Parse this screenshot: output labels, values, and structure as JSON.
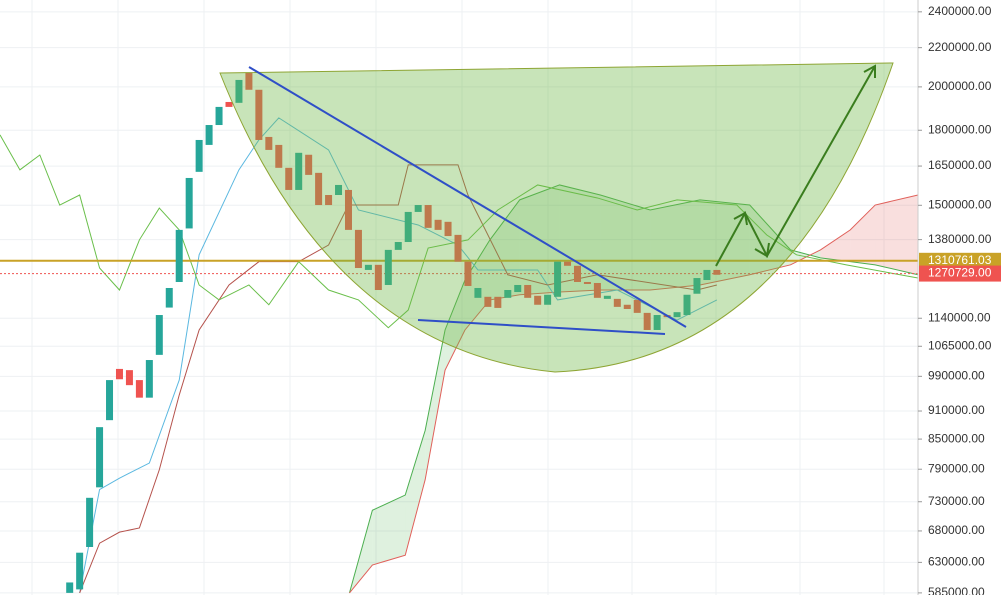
{
  "chart_data": {
    "type": "candlestick",
    "log_scale": true,
    "grid": true,
    "ylim": [
      582000,
      2470000
    ],
    "xlim": [
      -7,
      85.2
    ],
    "yticks": [
      {
        "value": 2400000,
        "label": "2400000.00"
      },
      {
        "value": 2200000,
        "label": "2200000.00"
      },
      {
        "value": 2000000,
        "label": "2000000.00"
      },
      {
        "value": 1800000,
        "label": "1800000.00"
      },
      {
        "value": 1650000,
        "label": "1650000.00"
      },
      {
        "value": 1500000,
        "label": "1500000.00"
      },
      {
        "value": 1380000,
        "label": "1380000.00"
      },
      {
        "value": 1140000,
        "label": "1140000.00"
      },
      {
        "value": 1065000,
        "label": "1065000.00"
      },
      {
        "value": 990000,
        "label": "990000.00"
      },
      {
        "value": 910000,
        "label": "910000.00"
      },
      {
        "value": 850000,
        "label": "850000.00"
      },
      {
        "value": 790000,
        "label": "790000.00"
      },
      {
        "value": 730000,
        "label": "730000.00"
      },
      {
        "value": 680000,
        "label": "680000.00"
      },
      {
        "value": 630000,
        "label": "630000.00"
      },
      {
        "value": 585000,
        "label": "585000.00"
      }
    ],
    "up_color": "#26a69a",
    "down_color": "#ef5350",
    "candles": {
      "open": [
        585000,
        590000,
        654000,
        756000,
        890000,
        1008000,
        1005000,
        981000,
        940000,
        1043000,
        1170000,
        1245000,
        1418000,
        1627000,
        1737000,
        1823000,
        1928000,
        1924000,
        2071000,
        1986000,
        1771000,
        1737000,
        1643000,
        1557000,
        1696000,
        1623000,
        1538000,
        1538000,
        1557000,
        1413000,
        1282000,
        1298000,
        1236000,
        1346000,
        1372000,
        1476000,
        1501000,
        1448000,
        1441000,
        1396000,
        1308000,
        1198000,
        1201000,
        1201000,
        1198000,
        1215000,
        1236000,
        1204000,
        1178000,
        1201000,
        1308000,
        1295000,
        1245000,
        1242000,
        1195000,
        1195000,
        1178000,
        1192000,
        1155000,
        1108000,
        1149000,
        1143000,
        1149000,
        1210000,
        1251000,
        1282000
      ],
      "close": [
        600000,
        645000,
        737000,
        875000,
        981000,
        983000,
        969000,
        940000,
        1030000,
        1149000,
        1227000,
        1413000,
        1603000,
        1758000,
        1823000,
        1905000,
        1905000,
        2034000,
        1986000,
        1758000,
        1716000,
        1643000,
        1557000,
        1704000,
        1615000,
        1501000,
        1501000,
        1576000,
        1413000,
        1288000,
        1298000,
        1221000,
        1346000,
        1372000,
        1476000,
        1501000,
        1420000,
        1413000,
        1392000,
        1308000,
        1233000,
        1227000,
        1172000,
        1169000,
        1221000,
        1236000,
        1198000,
        1178000,
        1207000,
        1308000,
        1295000,
        1245000,
        1239000,
        1198000,
        1204000,
        1172000,
        1166000,
        1155000,
        1108000,
        1149000,
        1143000,
        1157000,
        1207000,
        1257000,
        1282000,
        1267000
      ]
    },
    "lines": [
      {
        "color": "#5bb8e0",
        "x": [
          1,
          3,
          5,
          8,
          11,
          13,
          17,
          19,
          21,
          26,
          29,
          35,
          39,
          41,
          47,
          49,
          55,
          61,
          65
        ],
        "values": [
          585000,
          752000,
          773000,
          802000,
          981000,
          1330000,
          1635000,
          1758000,
          1855000,
          1716000,
          1483000,
          1430000,
          1362000,
          1282000,
          1282000,
          1192000,
          1221000,
          1135000,
          1192000
        ]
      },
      {
        "color": "#b5524c",
        "x": [
          1,
          3,
          5,
          7,
          9,
          11,
          13,
          16,
          19,
          23,
          26,
          28,
          33,
          34,
          39,
          40,
          44,
          48,
          53,
          63,
          65
        ],
        "values": [
          585000,
          660000,
          678000,
          685000,
          789000,
          946000,
          1108000,
          1236000,
          1308000,
          1308000,
          1362000,
          1501000,
          1501000,
          1655000,
          1655000,
          1538000,
          1267000,
          1236000,
          1267000,
          1221000,
          1236000
        ]
      },
      {
        "color": "#6abf4b",
        "x": [
          -7,
          -5,
          -3,
          -1,
          1,
          3,
          5,
          7,
          9,
          11,
          13,
          15,
          18,
          20,
          23,
          26,
          29,
          32,
          34,
          36,
          40,
          43,
          47,
          53,
          57,
          61,
          67,
          70,
          73,
          78,
          85.2
        ],
        "values": [
          1780000,
          1635000,
          1695000,
          1501000,
          1538000,
          1288000,
          1221000,
          1379000,
          1490000,
          1413000,
          1236000,
          1192000,
          1236000,
          1178000,
          1308000,
          1221000,
          1192000,
          1114000,
          1163000,
          1352000,
          1379000,
          1483000,
          1576000,
          1527000,
          1483000,
          1520000,
          1501000,
          1396000,
          1330000,
          1298000,
          1257000
        ]
      }
    ],
    "cloud": {
      "x": [
        28.1,
        30.4,
        33.7,
        35.7,
        37.7,
        39.7,
        42.2,
        45.2,
        49.2,
        53.3,
        58.3,
        63.3,
        68.3,
        72.4,
        75.4,
        78.4,
        80.9,
        85.2
      ],
      "span_a": [
        585000,
        715000,
        742000,
        868000,
        1108000,
        1251000,
        1379000,
        1520000,
        1576000,
        1538000,
        1483000,
        1520000,
        1501000,
        1346000,
        1320000,
        1308000,
        1298000,
        1267000
      ],
      "span_b": [
        585000,
        626000,
        641000,
        770000,
        1005000,
        1108000,
        1192000,
        1207000,
        1215000,
        1221000,
        1221000,
        1236000,
        1267000,
        1298000,
        1346000,
        1413000,
        1501000,
        1538000
      ],
      "color_a": "#4caf50",
      "color_b": "#e0605a"
    },
    "price_lines": [
      {
        "value": 1310761.03,
        "label": "1310761.03",
        "color": "#c9a227"
      },
      {
        "value": 1270729,
        "label": "1270729.00",
        "color": "#ef5350"
      }
    ]
  }
}
